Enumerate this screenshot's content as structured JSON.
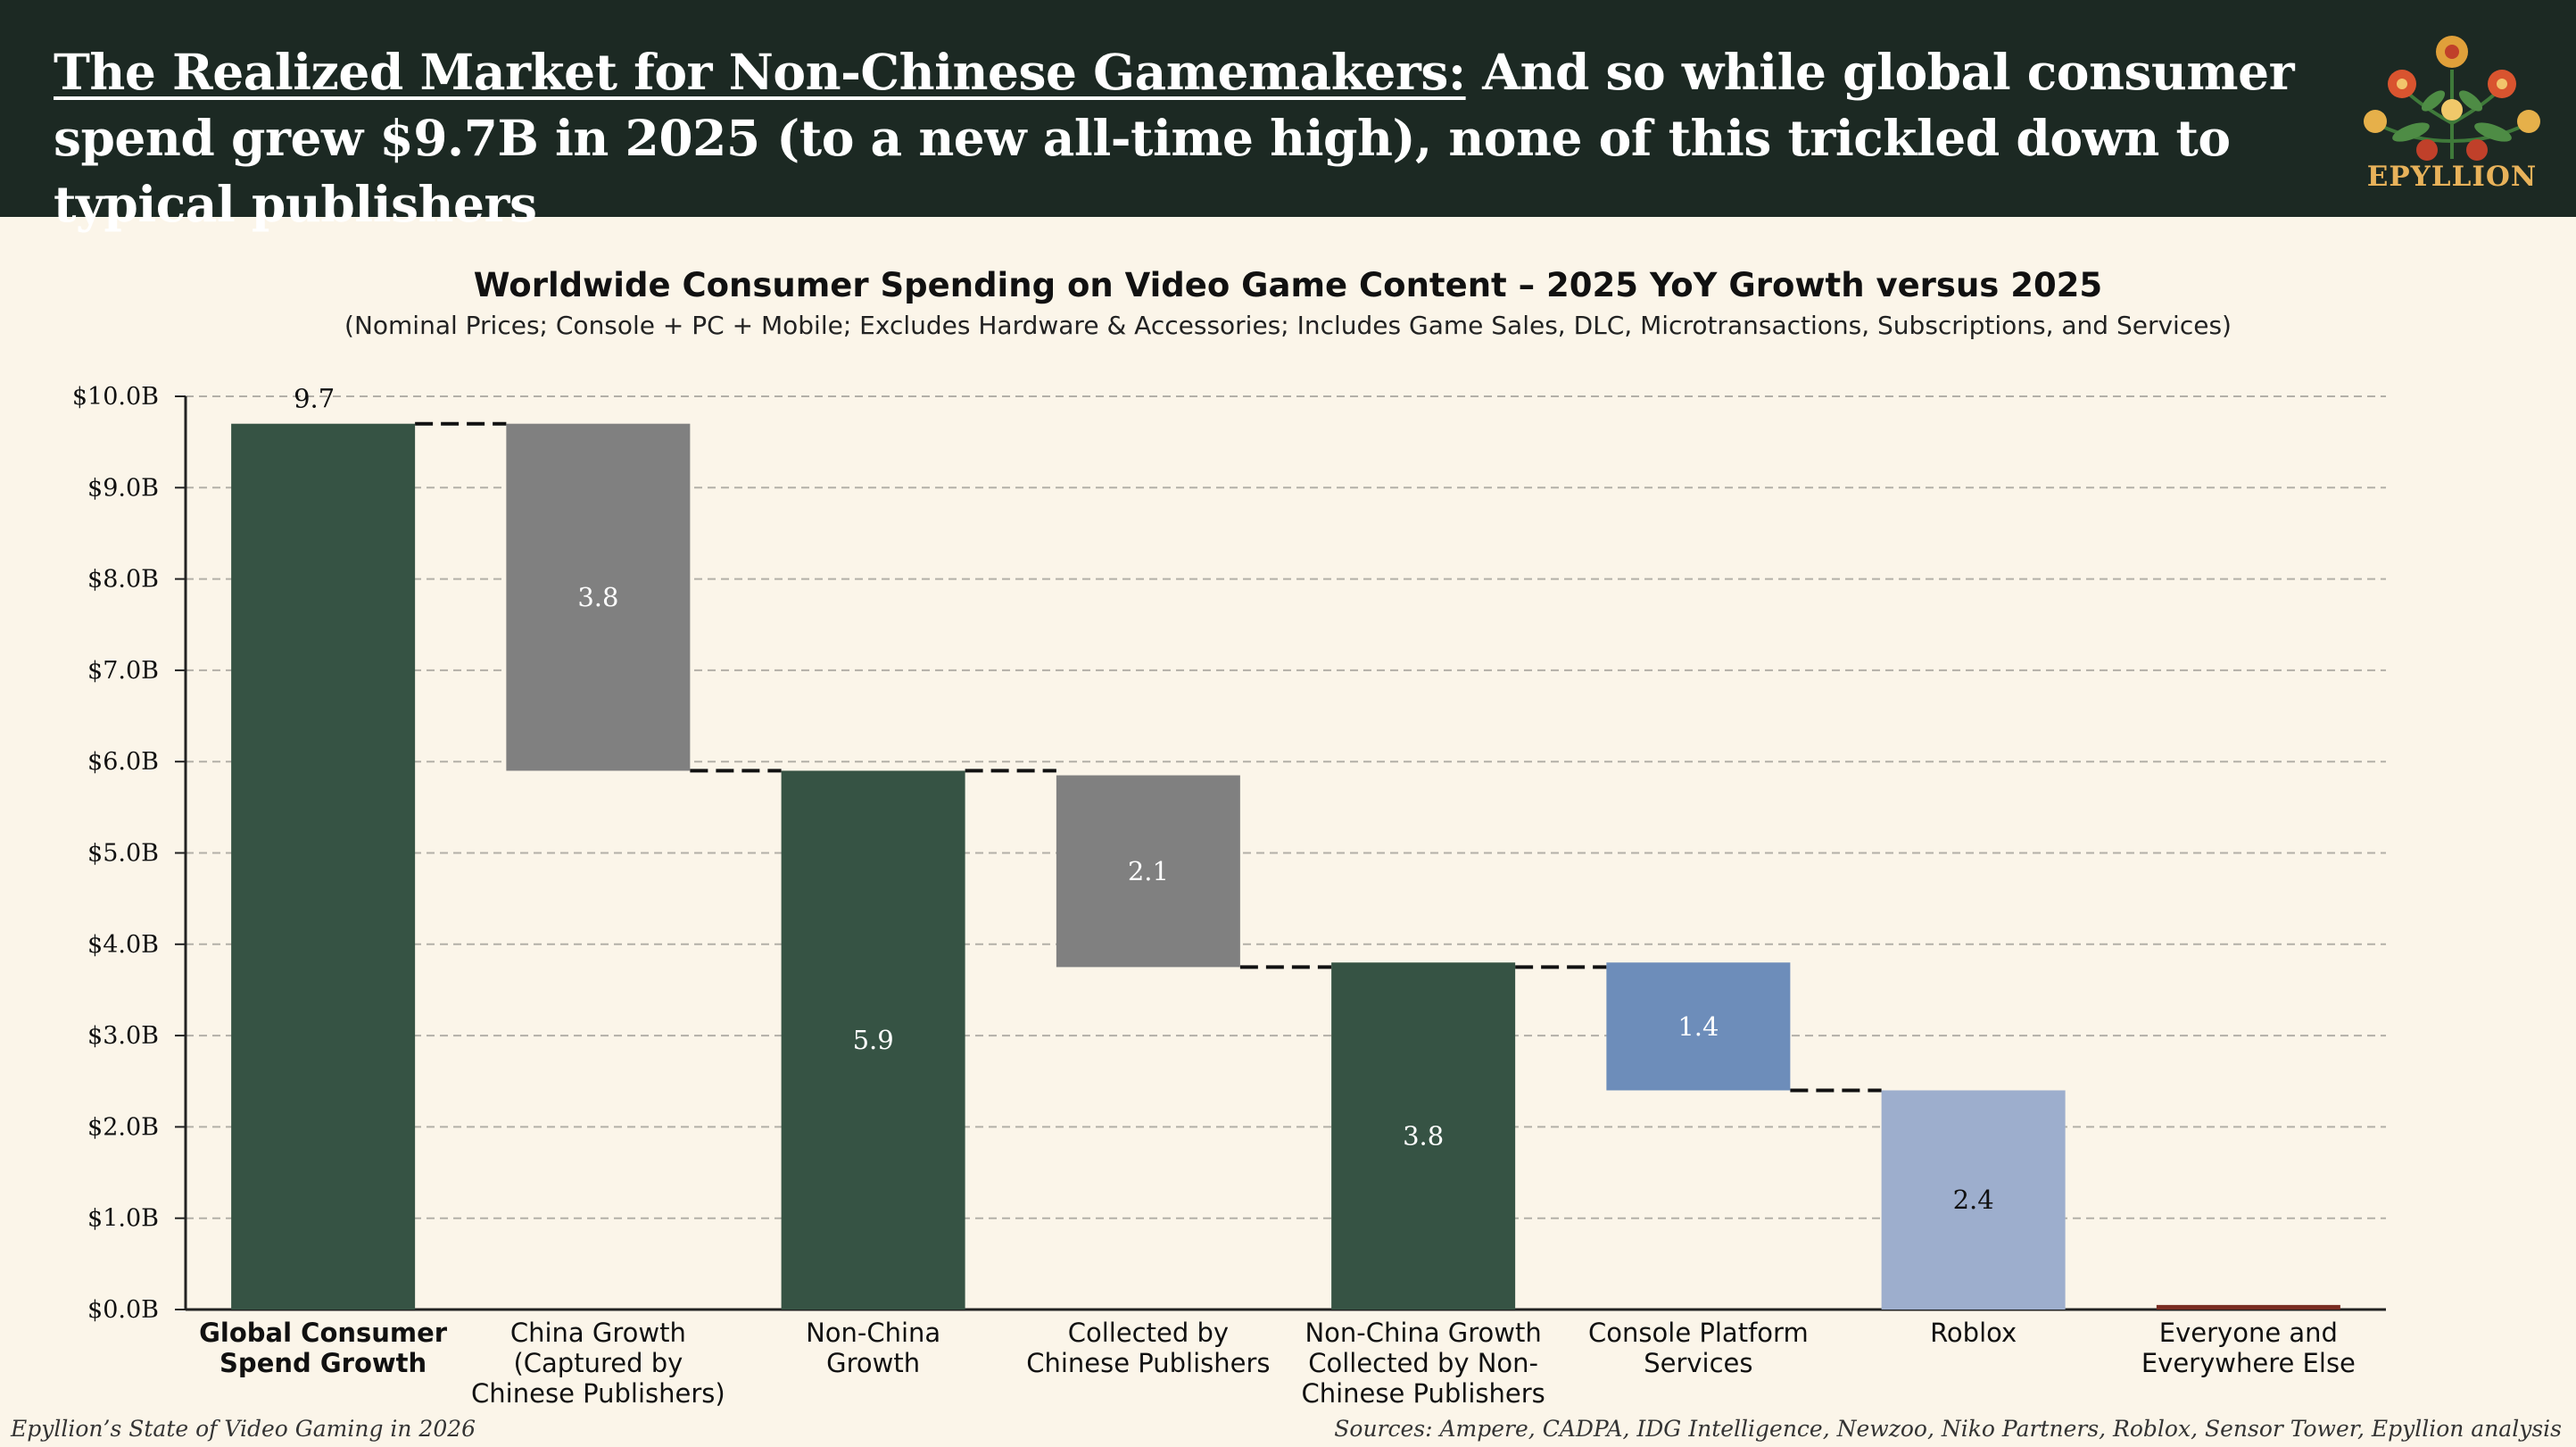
{
  "header": {
    "headline_lead": "The Realized Market for Non-Chinese Gamemakers:",
    "headline_rest": "And so while global consumer spend grew $9.7B in 2025 (to a new all-time high), none of this trickled down to typical publishers",
    "logo_text": "EPYLLION"
  },
  "footer": {
    "left": "Epyllion’s State of Video Gaming in 2026",
    "right": "Sources: Ampere, CADPA, IDG Intelligence, Newzoo, Niko Partners, Roblox, Sensor Tower, Epyllion analysis"
  },
  "colors": {
    "header_bg": "#1c2923",
    "dark_green": "#365344",
    "gray": "#808080",
    "blue": "#6d8dba",
    "light_blue": "#9daecd",
    "red": "#7a2d22"
  },
  "chart_data": {
    "type": "bar",
    "subtype": "waterfall",
    "title": "Worldwide Consumer Spending on Video Game Content – 2025 YoY Growth versus 2025",
    "subtitle": "(Nominal Prices; Console + PC + Mobile; Excludes Hardware & Accessories; Includes Game Sales, DLC, Microtransactions, Subscriptions, and Services)",
    "ylim": [
      0,
      10
    ],
    "yticks": [
      0,
      1,
      2,
      3,
      4,
      5,
      6,
      7,
      8,
      9,
      10
    ],
    "ytick_labels": [
      "$0.0B",
      "$1.0B",
      "$2.0B",
      "$3.0B",
      "$4.0B",
      "$5.0B",
      "$6.0B",
      "$7.0B",
      "$8.0B",
      "$9.0B",
      "$10.0B"
    ],
    "grid": true,
    "bars": [
      {
        "category": [
          "Global Consumer",
          "Spend Growth"
        ],
        "bold": true,
        "base": 0,
        "value": 9.7,
        "label": "9.7",
        "label_pos": "above",
        "color": "#365344"
      },
      {
        "category": [
          "China Growth",
          "(Captured by",
          "Chinese Publishers)"
        ],
        "bold": false,
        "base": 5.9,
        "value": 3.8,
        "label": "3.8",
        "label_pos": "inside",
        "color": "#808080"
      },
      {
        "category": [
          "Non-China",
          "Growth"
        ],
        "bold": false,
        "base": 0,
        "value": 5.9,
        "label": "5.9",
        "label_pos": "inside",
        "color": "#365344"
      },
      {
        "category": [
          "Collected by",
          "Chinese Publishers"
        ],
        "bold": false,
        "base": 3.75,
        "value": 2.1,
        "label": "2.1",
        "label_pos": "inside",
        "color": "#808080"
      },
      {
        "category": [
          "Non-China Growth",
          "Collected by Non-",
          "Chinese Publishers"
        ],
        "bold": false,
        "base": 0,
        "value": 3.8,
        "label": "3.8",
        "label_pos": "inside",
        "color": "#365344"
      },
      {
        "category": [
          "Console Platform",
          "Services"
        ],
        "bold": false,
        "base": 2.4,
        "value": 1.4,
        "label": "1.4",
        "label_pos": "inside",
        "color": "#6d8dba"
      },
      {
        "category": [
          "Roblox"
        ],
        "bold": false,
        "base": 0,
        "value": 2.4,
        "label": "2.4",
        "label_pos": "inside",
        "color": "#9daecd"
      },
      {
        "category": [
          "Everyone and",
          "Everywhere Else"
        ],
        "bold": false,
        "base": 0,
        "value": 0.05,
        "label": "",
        "label_pos": "none",
        "color": "#7a2d22"
      }
    ],
    "connectors": [
      {
        "from": 0,
        "to": 1,
        "level": 9.7
      },
      {
        "from": 1,
        "to": 2,
        "level": 5.9
      },
      {
        "from": 2,
        "to": 3,
        "level": 5.9
      },
      {
        "from": 3,
        "to": 4,
        "level": 3.75
      },
      {
        "from": 4,
        "to": 5,
        "level": 3.75
      },
      {
        "from": 5,
        "to": 6,
        "level": 2.4
      }
    ]
  }
}
